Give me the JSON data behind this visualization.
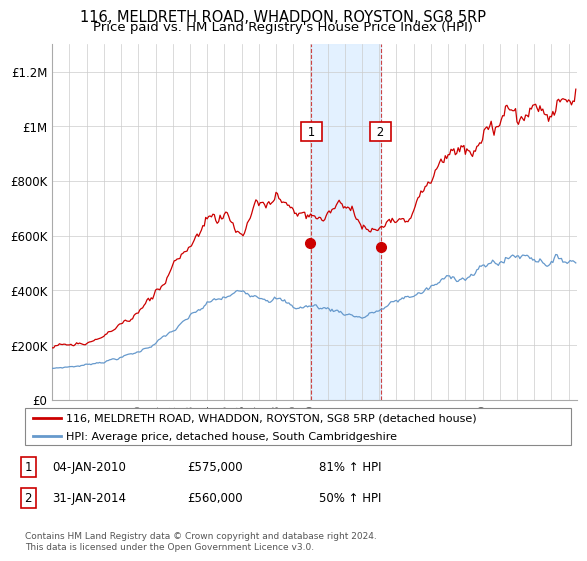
{
  "title": "116, MELDRETH ROAD, WHADDON, ROYSTON, SG8 5RP",
  "subtitle": "Price paid vs. HM Land Registry's House Price Index (HPI)",
  "title_fontsize": 10.5,
  "subtitle_fontsize": 9.5,
  "ylim": [
    0,
    1300000
  ],
  "yticks": [
    0,
    200000,
    400000,
    600000,
    800000,
    1000000,
    1200000
  ],
  "ytick_labels": [
    "£0",
    "£200K",
    "£400K",
    "£600K",
    "£800K",
    "£1M",
    "£1.2M"
  ],
  "red_color": "#cc0000",
  "blue_color": "#6699cc",
  "sale1_x": 2010.04,
  "sale1_y": 575000,
  "sale2_x": 2014.08,
  "sale2_y": 560000,
  "highlight_xmin": 2010.04,
  "highlight_xmax": 2014.08,
  "highlight_color": "#ddeeff",
  "vline_color": "#cc4444",
  "legend_red_label": "116, MELDRETH ROAD, WHADDON, ROYSTON, SG8 5RP (detached house)",
  "legend_blue_label": "HPI: Average price, detached house, South Cambridgeshire",
  "table_rows": [
    {
      "num": "1",
      "date": "04-JAN-2010",
      "price": "£575,000",
      "hpi": "81% ↑ HPI"
    },
    {
      "num": "2",
      "date": "31-JAN-2014",
      "price": "£560,000",
      "hpi": "50% ↑ HPI"
    }
  ],
  "footnote": "Contains HM Land Registry data © Crown copyright and database right 2024.\nThis data is licensed under the Open Government Licence v3.0.",
  "xmin": 1995,
  "xmax": 2025.5,
  "xtick_years": [
    1995,
    1996,
    1997,
    1998,
    1999,
    2000,
    2001,
    2002,
    2003,
    2004,
    2005,
    2006,
    2007,
    2008,
    2009,
    2010,
    2011,
    2012,
    2013,
    2014,
    2015,
    2016,
    2017,
    2018,
    2019,
    2020,
    2021,
    2022,
    2023,
    2024,
    2025
  ]
}
